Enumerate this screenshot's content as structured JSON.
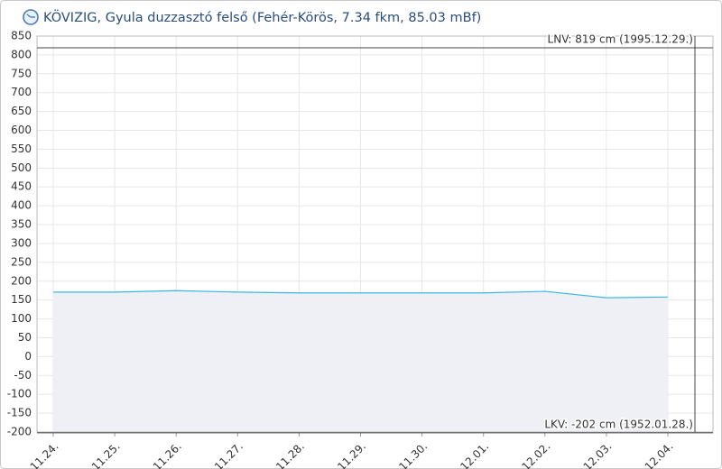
{
  "chart_data": {
    "type": "area-line",
    "title": "KÖVIZIG, Gyula duzzasztó felső (Fehér-Körös, 7.34 fkm, 85.03 mBf)",
    "categories": [
      "11.24.",
      "11.25.",
      "11.26.",
      "11.27.",
      "11.28.",
      "11.29.",
      "11.30.",
      "12.01.",
      "12.02.",
      "12.03.",
      "12.04."
    ],
    "values": [
      171,
      171,
      175,
      171,
      169,
      169,
      169,
      169,
      173,
      156,
      158
    ],
    "color": "#3bb6e3",
    "fill": "#eef0f6",
    "ylim": [
      -200,
      850
    ],
    "yticks": [
      -200,
      -150,
      -100,
      -50,
      0,
      50,
      100,
      150,
      200,
      250,
      300,
      350,
      400,
      450,
      500,
      550,
      600,
      650,
      700,
      750,
      800,
      850
    ],
    "grid": true,
    "reference_lines": [
      {
        "value": 819,
        "label": "LNV: 819 cm (1995.12.29.)"
      },
      {
        "value": -202,
        "label": "LKV: -202 cm (1952.01.28.)"
      }
    ]
  }
}
